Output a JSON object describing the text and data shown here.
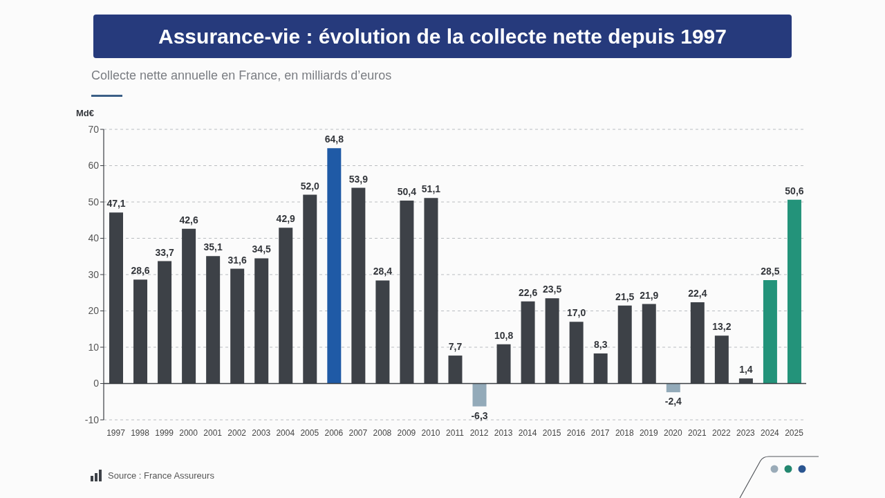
{
  "chart_data": {
    "type": "bar",
    "title": "Assurance-vie : évolution de la collecte nette depuis 1997",
    "subtitle": "Collecte nette annuelle en France, en milliards d’euros",
    "ylabel": "Md€",
    "annotations": [
      "Source : France Assureurs"
    ],
    "categories": [
      "1997",
      "1998",
      "1999",
      "2000",
      "2001",
      "2002",
      "2003",
      "2004",
      "2005",
      "2006",
      "2007",
      "2008",
      "2009",
      "2010",
      "2011",
      "2012",
      "2013",
      "2014",
      "2015",
      "2016",
      "2017",
      "2018",
      "2019",
      "2020",
      "2021",
      "2022",
      "2023",
      "2024",
      "2025"
    ],
    "values": [
      47.1,
      28.6,
      33.7,
      42.6,
      35.1,
      31.6,
      34.5,
      42.9,
      52.0,
      64.8,
      53.9,
      28.4,
      50.4,
      51.1,
      7.7,
      -6.3,
      10.8,
      22.6,
      23.5,
      17.0,
      8.3,
      21.5,
      21.9,
      -2.4,
      22.4,
      13.2,
      1.4,
      28.5,
      50.6
    ],
    "value_labels": [
      "47,1",
      "28,6",
      "33,7",
      "42,6",
      "35,1",
      "31,6",
      "34,5",
      "42,9",
      "52,0",
      "64,8",
      "53,9",
      "28,4",
      "50,4",
      "51,1",
      "7,7",
      "-6,3",
      "10,8",
      "22,6",
      "23,5",
      "17,0",
      "8,3",
      "21,5",
      "21,9",
      "-2,4",
      "22,4",
      "13,2",
      "1,4",
      "28,5",
      "50,6"
    ],
    "colors": [
      "#3d4147",
      "#3d4147",
      "#3d4147",
      "#3d4147",
      "#3d4147",
      "#3d4147",
      "#3d4147",
      "#3d4147",
      "#3d4147",
      "#1f5aa6",
      "#3d4147",
      "#3d4147",
      "#3d4147",
      "#3d4147",
      "#3d4147",
      "#93aab9",
      "#3d4147",
      "#3d4147",
      "#3d4147",
      "#3d4147",
      "#3d4147",
      "#3d4147",
      "#3d4147",
      "#93aab9",
      "#3d4147",
      "#3d4147",
      "#3d4147",
      "#23937a",
      "#23937a"
    ],
    "ylim": [
      -10,
      70
    ],
    "yticks": [
      -10,
      0,
      10,
      20,
      30,
      40,
      50,
      60,
      70
    ],
    "grid": "y",
    "ref_lines": [
      {
        "axis": "y",
        "value": 0,
        "color": "#3a3d42"
      }
    ]
  }
}
